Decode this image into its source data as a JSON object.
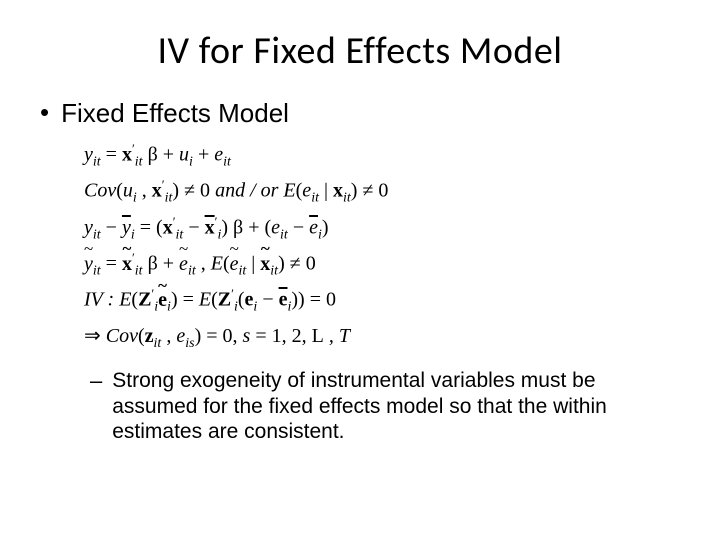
{
  "slide": {
    "title": "IV for Fixed Effects Model",
    "subtitle": "Fixed Effects Model",
    "note": "Strong exogeneity of instrumental variables must be assumed for the fixed effects model so that the within estimates are consistent.",
    "bullet_char": "•",
    "dash_char": "–",
    "colors": {
      "background": "#ffffff",
      "text": "#000000"
    },
    "typography": {
      "title_font": "Calibri",
      "title_size_pt": 38,
      "body_font": "Arial",
      "body_size_pt": 26,
      "note_size_pt": 21,
      "math_font": "Times New Roman",
      "math_size_pt": 20
    },
    "math": {
      "l1_y": "y",
      "l1_sub1": "it",
      "l1_eq": " = ",
      "l1_x": "x",
      "l1_xprime": "′",
      "l1_xsub": "it",
      "l1_beta": " β ",
      "l1_plus1": "+ ",
      "l1_u": "u",
      "l1_usub": "i",
      "l1_plus2": " + ",
      "l1_e": "e",
      "l1_esub": "it",
      "l2_cov": "Cov",
      "l2_open": "(",
      "l2_u": "u",
      "l2_usub": "i",
      "l2_comma": " , ",
      "l2_x": "x",
      "l2_xprime": "′",
      "l2_xsub": "it",
      "l2_close": ")",
      "l2_neq1": " ≠ 0 ",
      "l2_andor": " and / or ",
      "l2_E": " E",
      "l2_open2": "(",
      "l2_e": "e",
      "l2_esub": "it",
      "l2_bar": " | ",
      "l2_x2": "x",
      "l2_x2sub": "it",
      "l2_close2": ")",
      "l2_neq2": " ≠ 0",
      "l3_y1": "y",
      "l3_y1sub": "it",
      "l3_minus1": " − ",
      "l3_y2": "y",
      "l3_y2sub": "i",
      "l3_eq": " = (",
      "l3_x1": "x",
      "l3_x1prime": "′",
      "l3_x1sub": "it",
      "l3_minus2": " − ",
      "l3_x2": "x",
      "l3_x2prime": "′",
      "l3_x2sub": "i",
      "l3_close1": ") ",
      "l3_beta": "β ",
      "l3_plus": "+ (",
      "l3_e1": "e",
      "l3_e1sub": "it",
      "l3_minus3": " − ",
      "l3_e2": "e",
      "l3_e2sub": "i",
      "l3_close2": ")",
      "l4_y": "y",
      "l4_ysub": "it",
      "l4_eq": " = ",
      "l4_x": "x",
      "l4_xprime": "′",
      "l4_xsub": "it",
      "l4_beta": " β ",
      "l4_plus": "+ ",
      "l4_e": "e",
      "l4_esub": "it",
      "l4_comma": " ,  ",
      "l4_E": "E",
      "l4_open": "(",
      "l4_e2": "e",
      "l4_e2sub": "it",
      "l4_bar": " | ",
      "l4_x2": "x",
      "l4_x2sub": "it",
      "l4_close": ")",
      "l4_neq": " ≠ 0",
      "l5_iv": "IV : ",
      "l5_E1": "E",
      "l5_open1": "(",
      "l5_Z1": "Z",
      "l5_Z1prime": "′",
      "l5_Z1sub": "i",
      "l5_e1": "e",
      "l5_e1sub": "i",
      "l5_close1": ")",
      "l5_eq": " = ",
      "l5_E2": "E",
      "l5_open2": "(",
      "l5_Z2": "Z",
      "l5_Z2prime": "′",
      "l5_Z2sub": "i",
      "l5_open3": "(",
      "l5_e2": "e",
      "l5_e2sub": "i",
      "l5_minus": " − ",
      "l5_e3": "e",
      "l5_e3sub": "i",
      "l5_close3": "))",
      "l5_eqz": " = 0",
      "l6_arrow": "⇒ ",
      "l6_cov": "Cov",
      "l6_open": "(",
      "l6_z": "z",
      "l6_zsub": "it",
      "l6_comma": " , ",
      "l6_e": "e",
      "l6_esub": "is",
      "l6_close": ")",
      "l6_eqz": " = 0,  ",
      "l6_s": "s",
      "l6_eq": " = 1, 2, ",
      "l6_L": "L",
      "l6_T": "  , T"
    }
  }
}
